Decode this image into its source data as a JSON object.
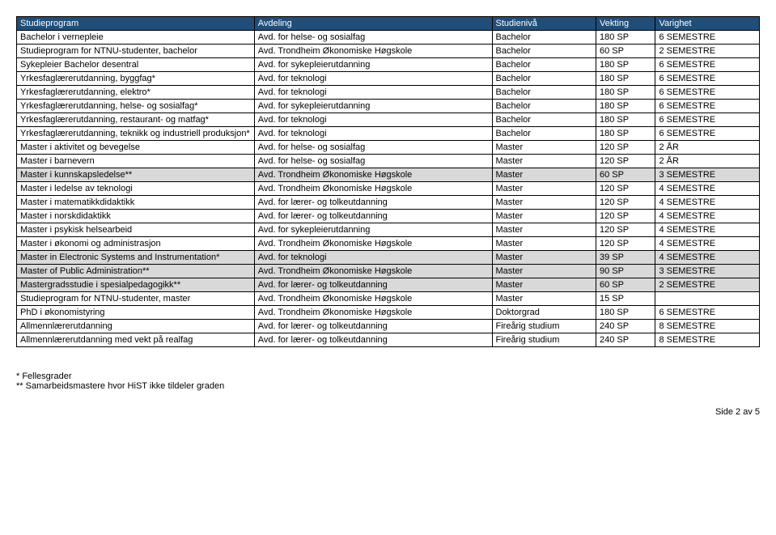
{
  "table": {
    "headers": [
      "Studieprogram",
      "Avdeling",
      "Studienivå",
      "Vekting",
      "Varighet"
    ],
    "rows": [
      {
        "shaded": false,
        "c": [
          "Bachelor i vernepleie",
          "Avd. for helse- og sosialfag",
          "Bachelor",
          "180 SP",
          "6 SEMESTRE"
        ]
      },
      {
        "shaded": false,
        "c": [
          "Studieprogram for NTNU-studenter, bachelor",
          "Avd. Trondheim Økonomiske Høgskole",
          "Bachelor",
          "60 SP",
          "2 SEMESTRE"
        ]
      },
      {
        "shaded": false,
        "c": [
          "Sykepleier Bachelor desentral",
          "Avd. for sykepleierutdanning",
          "Bachelor",
          "180 SP",
          "6 SEMESTRE"
        ]
      },
      {
        "shaded": false,
        "c": [
          "Yrkesfaglærerutdanning, byggfag*",
          "Avd. for teknologi",
          "Bachelor",
          "180 SP",
          "6 SEMESTRE"
        ]
      },
      {
        "shaded": false,
        "c": [
          "Yrkesfaglærerutdanning, elektro*",
          "Avd. for teknologi",
          "Bachelor",
          "180 SP",
          "6 SEMESTRE"
        ]
      },
      {
        "shaded": false,
        "c": [
          "Yrkesfaglærerutdanning, helse- og sosialfag*",
          "Avd. for sykepleierutdanning",
          "Bachelor",
          "180 SP",
          "6 SEMESTRE"
        ]
      },
      {
        "shaded": false,
        "c": [
          "Yrkesfaglærerutdanning, restaurant- og matfag*",
          "Avd. for teknologi",
          "Bachelor",
          "180 SP",
          "6 SEMESTRE"
        ]
      },
      {
        "shaded": false,
        "c": [
          "Yrkesfaglærerutdanning, teknikk og industriell produksjon*",
          "Avd. for teknologi",
          "Bachelor",
          "180 SP",
          "6 SEMESTRE"
        ]
      },
      {
        "shaded": false,
        "c": [
          "Master i aktivitet og bevegelse",
          "Avd. for helse- og sosialfag",
          "Master",
          "120 SP",
          "2 ÅR"
        ]
      },
      {
        "shaded": false,
        "c": [
          "Master i barnevern",
          "Avd. for helse- og sosialfag",
          "Master",
          "120 SP",
          "2 ÅR"
        ]
      },
      {
        "shaded": true,
        "c": [
          "Master i kunnskapsledelse**",
          "Avd. Trondheim Økonomiske Høgskole",
          "Master",
          "60 SP",
          "3 SEMESTRE"
        ]
      },
      {
        "shaded": false,
        "c": [
          "Master i ledelse av teknologi",
          "Avd. Trondheim Økonomiske Høgskole",
          "Master",
          "120 SP",
          "4 SEMESTRE"
        ]
      },
      {
        "shaded": false,
        "c": [
          "Master i matematikkdidaktikk",
          "Avd. for lærer- og tolkeutdanning",
          "Master",
          "120 SP",
          "4 SEMESTRE"
        ]
      },
      {
        "shaded": false,
        "c": [
          "Master i norskdidaktikk",
          "Avd. for lærer- og tolkeutdanning",
          "Master",
          "120 SP",
          "4 SEMESTRE"
        ]
      },
      {
        "shaded": false,
        "c": [
          "Master i psykisk helsearbeid",
          "Avd. for sykepleierutdanning",
          "Master",
          "120 SP",
          "4 SEMESTRE"
        ]
      },
      {
        "shaded": false,
        "c": [
          "Master i økonomi og administrasjon",
          "Avd. Trondheim Økonomiske Høgskole",
          "Master",
          "120 SP",
          "4 SEMESTRE"
        ]
      },
      {
        "shaded": true,
        "c": [
          "Master in Electronic Systems and Instrumentation*",
          "Avd. for teknologi",
          "Master",
          "39 SP",
          "4 SEMESTRE"
        ]
      },
      {
        "shaded": true,
        "c": [
          "Master of Public Administration**",
          "Avd. Trondheim Økonomiske Høgskole",
          "Master",
          "90 SP",
          "3 SEMESTRE"
        ]
      },
      {
        "shaded": true,
        "c": [
          "Mastergradsstudie i spesialpedagogikk**",
          "Avd. for lærer- og tolkeutdanning",
          "Master",
          "60 SP",
          "2 SEMESTRE"
        ]
      },
      {
        "shaded": false,
        "c": [
          "Studieprogram for NTNU-studenter, master",
          "Avd. Trondheim Økonomiske Høgskole",
          "Master",
          "15 SP",
          ""
        ]
      },
      {
        "shaded": false,
        "c": [
          "PhD i økonomistyring",
          "Avd. Trondheim Økonomiske Høgskole",
          "Doktorgrad",
          "180 SP",
          "6 SEMESTRE"
        ]
      },
      {
        "shaded": false,
        "c": [
          "Allmennlærerutdanning",
          "Avd. for lærer- og tolkeutdanning",
          "Fireårig studium",
          "240 SP",
          "8 SEMESTRE"
        ]
      },
      {
        "shaded": false,
        "c": [
          "Allmennlærerutdanning med vekt på realfag",
          "Avd. for lærer- og tolkeutdanning",
          "Fireårig studium",
          "240 SP",
          "8 SEMESTRE"
        ]
      }
    ]
  },
  "footnotes": [
    "* Fellesgrader",
    "** Samarbeidsmastere hvor HiST ikke tildeler graden"
  ],
  "page_number": "Side 2 av 5"
}
